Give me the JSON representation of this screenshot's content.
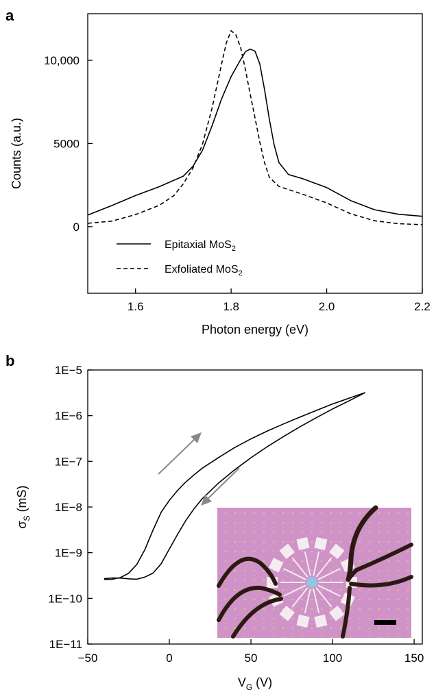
{
  "figure": {
    "panel_a_label": "a",
    "panel_b_label": "b",
    "inset_caption": "Optical micrograph of device with probe needles and scale bar"
  },
  "colors": {
    "axis": "#000000",
    "arrow": "#888888",
    "inset_background": "#cf93c8",
    "inset_dots": "#e8c87a",
    "pads": "#f4ecf0",
    "center": "#8fc6e6",
    "probes": "#2c1a12"
  },
  "chart_data": [
    {
      "type": "line",
      "panel": "a",
      "xlabel": "Photon energy (eV)",
      "ylabel": "Counts (a.u.)",
      "xlim": [
        1.5,
        2.2
      ],
      "ylim": [
        -4000,
        12800
      ],
      "xticks": [
        1.6,
        1.8,
        2.0,
        2.2
      ],
      "xtick_labels": [
        "1.6",
        "1.8",
        "2.0",
        "2.2"
      ],
      "yticks": [
        0,
        5000,
        10000
      ],
      "ytick_labels": [
        "0",
        "5000",
        "10,000"
      ],
      "grid": false,
      "legend_position": "lower-left",
      "series": [
        {
          "name": "Epitaxial MoS2",
          "name_base": "Epitaxial MoS",
          "name_sub": "2",
          "style": "solid",
          "x": [
            1.5,
            1.55,
            1.6,
            1.65,
            1.7,
            1.72,
            1.74,
            1.76,
            1.78,
            1.8,
            1.82,
            1.83,
            1.84,
            1.85,
            1.86,
            1.87,
            1.88,
            1.89,
            1.9,
            1.92,
            1.95,
            2.0,
            2.05,
            2.1,
            2.15,
            2.2
          ],
          "y": [
            700,
            1200,
            1800,
            2400,
            3100,
            3700,
            4600,
            6000,
            7600,
            9000,
            10100,
            10600,
            10700,
            10500,
            9700,
            8200,
            6500,
            5000,
            3900,
            3100,
            2800,
            2300,
            1600,
            1100,
            800,
            600
          ]
        },
        {
          "name": "Exfoliated MoS2",
          "name_base": "Exfoliated MoS",
          "name_sub": "2",
          "style": "dashed",
          "x": [
            1.5,
            1.55,
            1.6,
            1.65,
            1.68,
            1.7,
            1.72,
            1.74,
            1.76,
            1.78,
            1.79,
            1.8,
            1.81,
            1.82,
            1.83,
            1.84,
            1.85,
            1.86,
            1.87,
            1.88,
            1.9,
            1.95,
            2.0,
            2.05,
            2.1,
            2.15,
            2.2
          ],
          "y": [
            200,
            400,
            800,
            1300,
            1800,
            2500,
            3500,
            5000,
            7200,
            9800,
            11000,
            11700,
            11500,
            10800,
            9500,
            8000,
            6500,
            5000,
            3800,
            3000,
            2500,
            2000,
            1400,
            700,
            300,
            200,
            200
          ]
        }
      ]
    },
    {
      "type": "line",
      "panel": "b",
      "xlabel": "V_G (V)",
      "xlabel_base": "V",
      "xlabel_sub": "G",
      "xlabel_rest": " (V)",
      "ylabel": "σ_S (mS)",
      "ylabel_base": "σ",
      "ylabel_sub": "S",
      "ylabel_rest": " (mS)",
      "y_scale": "log",
      "xlim": [
        -50,
        155
      ],
      "ylim": [
        1e-11,
        1e-05
      ],
      "xticks": [
        -50,
        0,
        50,
        100,
        150
      ],
      "xtick_labels": [
        "−50",
        "0",
        "50",
        "100",
        "150"
      ],
      "yticks": [
        1e-11,
        1e-10,
        1e-09,
        1e-08,
        1e-07,
        1e-06,
        1e-05
      ],
      "ytick_labels": [
        "1E−11",
        "1E−10",
        "1E−9",
        "1E−8",
        "1E−7",
        "1E−6",
        "1E−5"
      ],
      "grid": false,
      "series": [
        {
          "style": "solid",
          "sweep": "forward",
          "x": [
            -40,
            -35,
            -30,
            -25,
            -20,
            -15,
            -10,
            -5,
            0,
            5,
            10,
            15,
            20,
            30,
            40,
            50,
            60,
            70,
            80,
            90,
            100,
            110,
            120
          ],
          "y": [
            2.6e-10,
            2.8e-10,
            3.2e-10,
            4e-10,
            6e-10,
            1.2e-09,
            3e-09,
            7e-09,
            1.4e-08,
            2.3e-08,
            3.5e-08,
            5e-08,
            7e-08,
            1.2e-07,
            2e-07,
            3.1e-07,
            4.6e-07,
            6.6e-07,
            9.3e-07,
            1.3e-06,
            1.8e-06,
            2.4e-06,
            3.2e-06
          ]
        },
        {
          "style": "solid",
          "sweep": "reverse",
          "x": [
            120,
            110,
            100,
            90,
            80,
            70,
            60,
            50,
            40,
            30,
            20,
            15,
            10,
            5,
            0,
            -5,
            -10,
            -15,
            -20,
            -25,
            -30,
            -35,
            -40
          ],
          "y": [
            3.2e-06,
            2.1e-06,
            1.4e-06,
            9e-07,
            5.7e-07,
            3.5e-07,
            2.1e-07,
            1.2e-07,
            6.5e-08,
            3.3e-08,
            1.5e-08,
            9e-09,
            5e-09,
            2.5e-09,
            1.2e-09,
            6.5e-10,
            4e-10,
            3.1e-10,
            2.6e-10,
            2.5e-10,
            2.5e-10,
            2.5e-10,
            2.5e-10
          ]
        }
      ]
    }
  ]
}
